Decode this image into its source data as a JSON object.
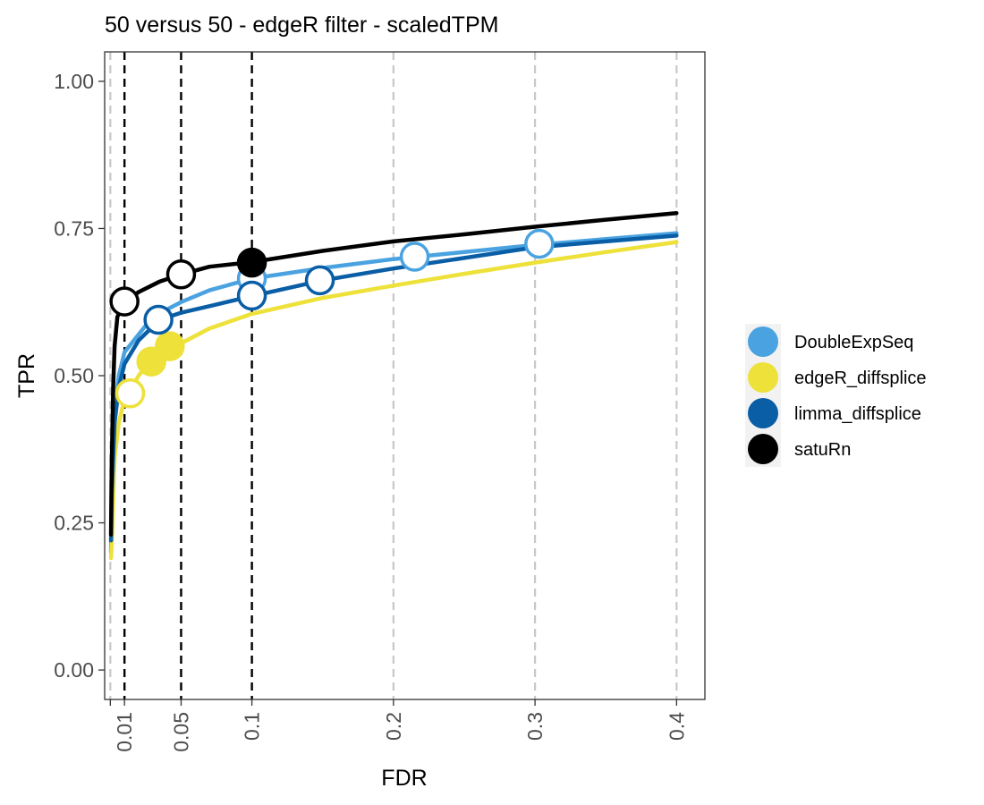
{
  "chart_data": {
    "type": "line",
    "title": "50 versus 50 - edgeR filter - scaledTPM",
    "xlabel": "FDR",
    "ylabel": "TPR",
    "xlim": [
      -0.004,
      0.42
    ],
    "ylim": [
      -0.05,
      1.05
    ],
    "x_ticks": [
      0,
      0.01,
      0.05,
      0.1,
      0.2,
      0.3,
      0.4
    ],
    "x_tick_labels": [
      "",
      "0.01",
      "0.05",
      "0.1",
      "0.2",
      "0.3",
      "0.4"
    ],
    "y_ticks": [
      0,
      0.25,
      0.5,
      0.75,
      1.0
    ],
    "y_tick_labels": [
      "0.00",
      "0.25",
      "0.50",
      "0.75",
      "1.00"
    ],
    "threshold_lines": [
      0.01,
      0.05,
      0.1
    ],
    "grid": "dashed vertical lines at x ticks",
    "legend_position": "right",
    "series": [
      {
        "name": "DoubleExpSeq",
        "color": "#4aa3e0",
        "line": [
          [
            0.0005,
            0.2
          ],
          [
            0.001,
            0.36
          ],
          [
            0.003,
            0.44
          ],
          [
            0.006,
            0.5
          ],
          [
            0.01,
            0.54
          ],
          [
            0.02,
            0.57
          ],
          [
            0.03,
            0.6
          ],
          [
            0.05,
            0.625
          ],
          [
            0.07,
            0.645
          ],
          [
            0.1,
            0.665
          ],
          [
            0.15,
            0.683
          ],
          [
            0.2,
            0.698
          ],
          [
            0.25,
            0.71
          ],
          [
            0.3,
            0.722
          ],
          [
            0.35,
            0.732
          ],
          [
            0.4,
            0.742
          ]
        ],
        "points": [
          {
            "fdr": 0.1,
            "tpr": 0.665,
            "filled": false
          },
          {
            "fdr": 0.215,
            "tpr": 0.702,
            "filled": false
          },
          {
            "fdr": 0.303,
            "tpr": 0.724,
            "filled": false
          }
        ]
      },
      {
        "name": "edgeR_diffsplice",
        "color": "#ede13a",
        "line": [
          [
            0.0005,
            0.19
          ],
          [
            0.001,
            0.21
          ],
          [
            0.003,
            0.36
          ],
          [
            0.006,
            0.42
          ],
          [
            0.01,
            0.46
          ],
          [
            0.02,
            0.5
          ],
          [
            0.03,
            0.53
          ],
          [
            0.05,
            0.555
          ],
          [
            0.07,
            0.58
          ],
          [
            0.1,
            0.605
          ],
          [
            0.15,
            0.632
          ],
          [
            0.2,
            0.653
          ],
          [
            0.25,
            0.673
          ],
          [
            0.3,
            0.692
          ],
          [
            0.35,
            0.71
          ],
          [
            0.4,
            0.727
          ]
        ],
        "points": [
          {
            "fdr": 0.014,
            "tpr": 0.47,
            "filled": false
          },
          {
            "fdr": 0.029,
            "tpr": 0.524,
            "filled": true
          },
          {
            "fdr": 0.042,
            "tpr": 0.55,
            "filled": true
          }
        ]
      },
      {
        "name": "limma_diffsplice",
        "color": "#0a5ea6",
        "line": [
          [
            0.0005,
            0.22
          ],
          [
            0.001,
            0.3
          ],
          [
            0.003,
            0.42
          ],
          [
            0.006,
            0.48
          ],
          [
            0.01,
            0.52
          ],
          [
            0.02,
            0.56
          ],
          [
            0.035,
            0.595
          ],
          [
            0.05,
            0.607
          ],
          [
            0.07,
            0.618
          ],
          [
            0.1,
            0.635
          ],
          [
            0.15,
            0.662
          ],
          [
            0.2,
            0.682
          ],
          [
            0.25,
            0.7
          ],
          [
            0.3,
            0.718
          ],
          [
            0.35,
            0.728
          ],
          [
            0.4,
            0.738
          ]
        ],
        "points": [
          {
            "fdr": 0.034,
            "tpr": 0.595,
            "filled": false
          },
          {
            "fdr": 0.1,
            "tpr": 0.636,
            "filled": false
          },
          {
            "fdr": 0.148,
            "tpr": 0.662,
            "filled": false
          }
        ]
      },
      {
        "name": "satuRn",
        "color": "#000000",
        "line": [
          [
            0.0005,
            0.23
          ],
          [
            0.001,
            0.35
          ],
          [
            0.002,
            0.48
          ],
          [
            0.003,
            0.55
          ],
          [
            0.005,
            0.6
          ],
          [
            0.01,
            0.625
          ],
          [
            0.02,
            0.642
          ],
          [
            0.035,
            0.66
          ],
          [
            0.05,
            0.672
          ],
          [
            0.07,
            0.685
          ],
          [
            0.1,
            0.693
          ],
          [
            0.15,
            0.712
          ],
          [
            0.2,
            0.728
          ],
          [
            0.25,
            0.74
          ],
          [
            0.3,
            0.753
          ],
          [
            0.35,
            0.765
          ],
          [
            0.4,
            0.776
          ]
        ],
        "points": [
          {
            "fdr": 0.01,
            "tpr": 0.626,
            "filled": false
          },
          {
            "fdr": 0.05,
            "tpr": 0.672,
            "filled": false
          },
          {
            "fdr": 0.1,
            "tpr": 0.692,
            "filled": true
          }
        ]
      }
    ]
  }
}
